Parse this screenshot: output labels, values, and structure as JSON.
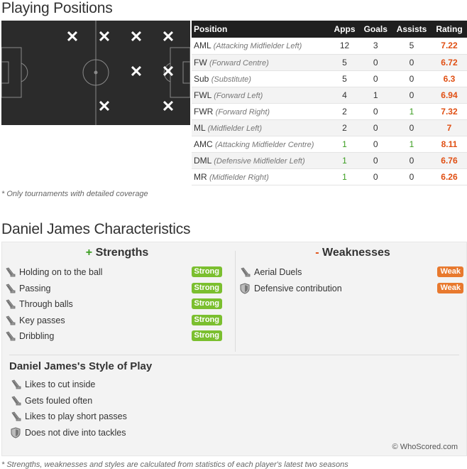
{
  "positions": {
    "title": "Playing Positions",
    "pitch_marks": [
      {
        "row": "a",
        "col": 1
      },
      {
        "row": "a",
        "col": 2
      },
      {
        "row": "a",
        "col": 3
      },
      {
        "row": "a",
        "col": 4
      },
      {
        "row": "b",
        "col": 3
      },
      {
        "row": "b",
        "col": 4
      },
      {
        "row": "c",
        "col": 2
      },
      {
        "row": "c",
        "col": 4
      }
    ],
    "mark_glyph": "✕",
    "table": {
      "headers": [
        "Position",
        "Apps",
        "Goals",
        "Assists",
        "Rating"
      ],
      "rows": [
        {
          "code": "AML",
          "full": "(Attacking Midfielder Left)",
          "apps": "12",
          "goals": "3",
          "assists": "5",
          "rating": "7.22"
        },
        {
          "code": "FW",
          "full": "(Forward Centre)",
          "apps": "5",
          "goals": "0",
          "assists": "0",
          "rating": "6.72"
        },
        {
          "code": "Sub",
          "full": "(Substitute)",
          "apps": "5",
          "goals": "0",
          "assists": "0",
          "rating": "6.3"
        },
        {
          "code": "FWL",
          "full": "(Forward Left)",
          "apps": "4",
          "goals": "1",
          "assists": "0",
          "rating": "6.94"
        },
        {
          "code": "FWR",
          "full": "(Forward Right)",
          "apps": "2",
          "goals": "0",
          "assists": "1",
          "rating": "7.32"
        },
        {
          "code": "ML",
          "full": "(Midfielder Left)",
          "apps": "2",
          "goals": "0",
          "assists": "0",
          "rating": "7"
        },
        {
          "code": "AMC",
          "full": "(Attacking Midfielder Centre)",
          "apps": "1",
          "goals": "0",
          "assists": "1",
          "rating": "8.11"
        },
        {
          "code": "DML",
          "full": "(Defensive Midfielder Left)",
          "apps": "1",
          "goals": "0",
          "assists": "0",
          "rating": "6.76"
        },
        {
          "code": "MR",
          "full": "(Midfielder Right)",
          "apps": "1",
          "goals": "0",
          "assists": "0",
          "rating": "6.26"
        }
      ]
    },
    "note": "* Only tournaments with detailed coverage"
  },
  "characteristics": {
    "title": "Daniel James Characteristics",
    "strengths_sign": "+",
    "strengths_label": "Strengths",
    "weaknesses_sign": "-",
    "weaknesses_label": "Weaknesses",
    "strengths": [
      {
        "label": "Holding on to the ball",
        "level": "Strong",
        "icon": "boot-icon"
      },
      {
        "label": "Passing",
        "level": "Strong",
        "icon": "boot-icon"
      },
      {
        "label": "Through balls",
        "level": "Strong",
        "icon": "boot-icon"
      },
      {
        "label": "Key passes",
        "level": "Strong",
        "icon": "boot-icon"
      },
      {
        "label": "Dribbling",
        "level": "Strong",
        "icon": "boot-icon"
      }
    ],
    "weaknesses": [
      {
        "label": "Aerial Duels",
        "level": "Weak",
        "icon": "boot-icon"
      },
      {
        "label": "Defensive contribution",
        "level": "Weak",
        "icon": "shield-icon"
      }
    ],
    "style_title": "Daniel James's Style of Play",
    "styles": [
      {
        "label": "Likes to cut inside",
        "icon": "boot-icon"
      },
      {
        "label": "Gets fouled often",
        "icon": "boot-icon"
      },
      {
        "label": "Likes to play short passes",
        "icon": "boot-icon"
      },
      {
        "label": "Does not dive into tackles",
        "icon": "shield-icon"
      }
    ],
    "credit": "© WhoScored.com",
    "footnote": "* Strengths, weaknesses and styles are calculated from statistics of each player's latest two seasons"
  },
  "colors": {
    "rating": "#e04f13",
    "green_value": "#3a9d1f",
    "strong_badge": "#7bbf2f",
    "weak_badge": "#e8792e",
    "pitch": "#2b2b2b",
    "table_header": "#1f1f1f"
  }
}
